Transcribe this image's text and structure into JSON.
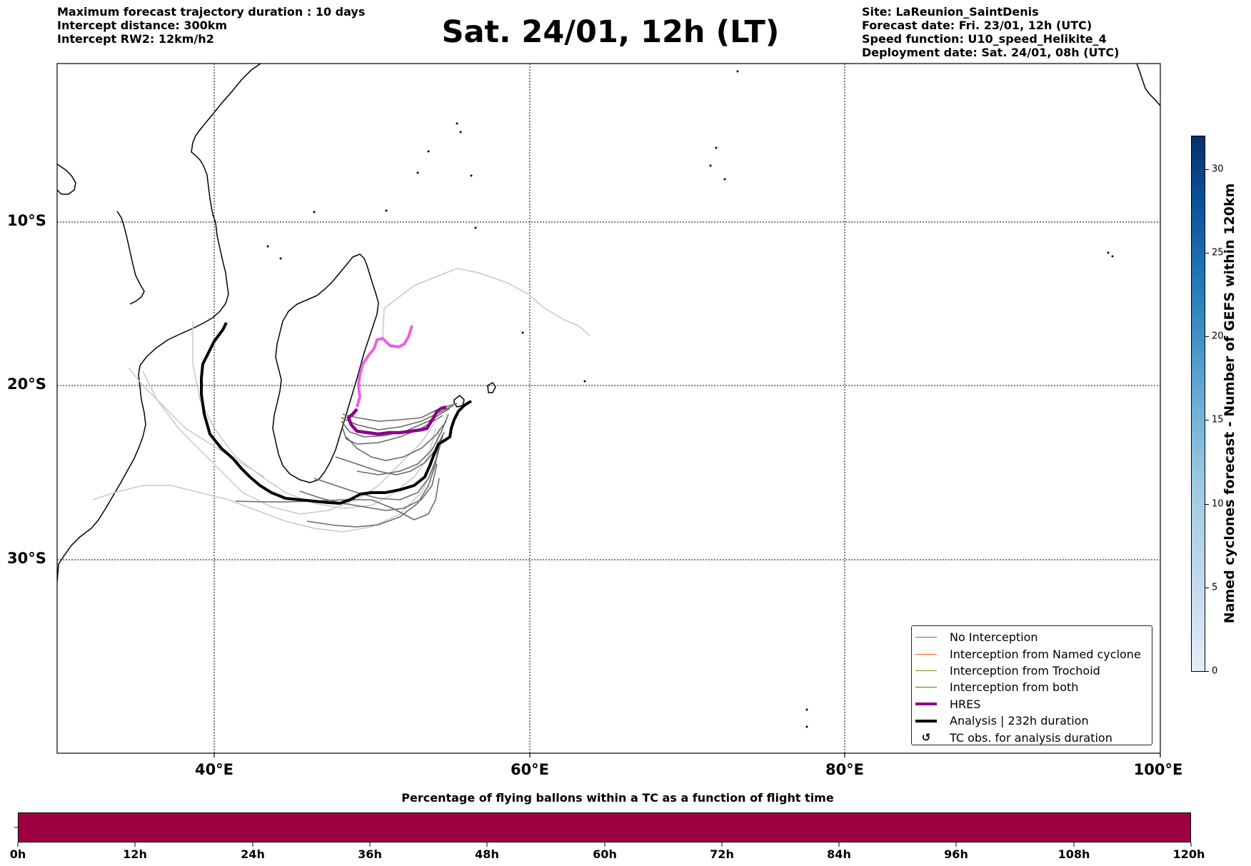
{
  "header": {
    "left": {
      "duration": "Maximum forecast trajectory duration : 10 days",
      "intercept_distance": "Intercept distance: 300km",
      "intercept_rw2": "Intercept RW2: 12km/h2"
    },
    "title": "Sat. 24/01, 12h (LT)",
    "right": {
      "site": "Site: LaReunion_SaintDenis",
      "forecast_date": "Forecast date: Fri. 23/01, 12h (UTC)",
      "speed_function": "Speed function: U10_speed_Helikite_4",
      "deployment_date": "Deployment date: Sat. 24/01, 08h (UTC)"
    }
  },
  "map": {
    "lat_labels": [
      "10°S",
      "20°S",
      "30°S"
    ],
    "lon_labels": [
      "40°E",
      "60°E",
      "80°E",
      "100°E"
    ]
  },
  "legend": {
    "items": [
      {
        "label": "No Interception",
        "color": "#707070"
      },
      {
        "label": "Interception from Named cyclone",
        "color": "#ff5a1f"
      },
      {
        "label": "Interception from Trochoid",
        "color": "#8b8b1a"
      },
      {
        "label": "Interception from both",
        "color": "#1a9a1a"
      },
      {
        "label": "HRES",
        "color": "#8b008b"
      },
      {
        "label": "Analysis | 232h duration",
        "color": "#000000"
      },
      {
        "label": "TC obs. for analysis duration",
        "symbol": "↺"
      }
    ]
  },
  "colorbar_vertical": {
    "title": "Named cyclones forecast - Number of GEFS within 120km",
    "ticks": [
      "0",
      "5",
      "10",
      "15",
      "20",
      "25",
      "30"
    ],
    "range": [
      0,
      32
    ]
  },
  "colorbar_horizontal": {
    "title": "Percentage of flying ballons within a TC as a function of flight time",
    "ticks": [
      "0h",
      "12h",
      "24h",
      "36h",
      "48h",
      "60h",
      "72h",
      "84h",
      "96h",
      "108h",
      "120h"
    ],
    "color": "#9e0142"
  }
}
